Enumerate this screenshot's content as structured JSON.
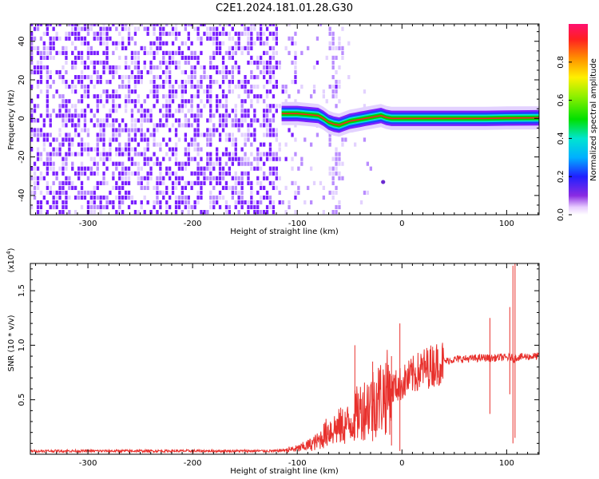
{
  "figure": {
    "title": "C2E1.2024.181.01.28.G30"
  },
  "chart_data": [
    {
      "type": "heatmap",
      "xlabel": "Height of straight line (km)",
      "ylabel": "Frequency (Hz)",
      "xlim": [
        -355,
        131
      ],
      "ylim": [
        -50,
        49
      ],
      "x_ticks": [
        -300,
        -200,
        -100,
        0,
        100
      ],
      "y_ticks": [
        -40,
        -20,
        0,
        20,
        40
      ],
      "colorbar": {
        "label": "Normalized spectral amplitude",
        "range": [
          0.0,
          1.0
        ],
        "ticks": [
          0.0,
          0.2,
          0.4,
          0.6,
          0.8
        ],
        "tick_labels": [
          "0.0",
          "0.2",
          "0.4",
          "0.6",
          "0.8"
        ]
      },
      "signal_track": {
        "description_values": "Doppler line frequency (Hz) vs height (km)",
        "x": [
          -115,
          -100,
          -90,
          -80,
          -75,
          -70,
          -65,
          -60,
          -55,
          -50,
          -45,
          -40,
          -35,
          -30,
          -25,
          -20,
          -15,
          -10,
          0,
          20,
          40,
          60,
          80,
          100,
          131
        ],
        "y": [
          2.5,
          2.5,
          2.0,
          1.5,
          0.0,
          -2.0,
          -3.0,
          -3.5,
          -2.5,
          -1.5,
          -1.0,
          -0.5,
          0.0,
          0.5,
          1.0,
          1.5,
          0.5,
          0.0,
          0.0,
          0.0,
          0.0,
          0.0,
          0.0,
          0.2,
          0.3
        ]
      },
      "isolated_point": {
        "x": -18,
        "y": -33
      }
    },
    {
      "type": "line",
      "xlabel": "Height of straight line (km)",
      "ylabel": "SNR (10 * v/v)",
      "y_multiplier": "(x10^4)",
      "xlim": [
        -355,
        131
      ],
      "ylim": [
        0,
        17500
      ],
      "x_ticks": [
        -300,
        -200,
        -100,
        0,
        100
      ],
      "y_ticks": [
        5000,
        10000,
        15000
      ],
      "y_tick_labels": [
        "0.5",
        "1.0",
        "1.5"
      ],
      "series": [
        {
          "color": "#e8312d",
          "x": [
            -355,
            -300,
            -200,
            -120,
            -100,
            -90,
            -80,
            -70,
            -60,
            -50,
            -45,
            -40,
            -35,
            -30,
            -25,
            -20,
            -15,
            -10,
            -5,
            0,
            10,
            20,
            30,
            40,
            50,
            60,
            70,
            80,
            85,
            90,
            95,
            100,
            104,
            106,
            107,
            108,
            110,
            120,
            131
          ],
          "values": [
            300,
            300,
            300,
            300,
            500,
            800,
            1200,
            2200,
            2500,
            2800,
            3500,
            4000,
            4300,
            4700,
            5000,
            5300,
            5600,
            6000,
            6300,
            6500,
            7200,
            7800,
            8200,
            8500,
            8700,
            8750,
            8800,
            8850,
            8800,
            8850,
            8900,
            8850,
            8900,
            8800,
            8700,
            8800,
            8900,
            8950,
            9000
          ]
        }
      ],
      "spikes": [
        {
          "x": 84,
          "values": [
            12500,
            3700
          ]
        },
        {
          "x": 103,
          "values": [
            13500,
            5500
          ]
        },
        {
          "x": 106,
          "values": [
            17300,
            1000
          ]
        },
        {
          "x": 108,
          "values": [
            17500,
            1500
          ]
        },
        {
          "x": -45,
          "values": [
            10000,
            1500
          ]
        },
        {
          "x": -28,
          "values": [
            8500,
            1200
          ]
        },
        {
          "x": -10,
          "values": [
            9000,
            800
          ]
        },
        {
          "x": -2,
          "values": [
            12000,
            300
          ]
        }
      ]
    }
  ],
  "colors": {
    "noise_purple": "#7a1fff",
    "signal_red": "#e8312d",
    "axis": "#000000"
  }
}
